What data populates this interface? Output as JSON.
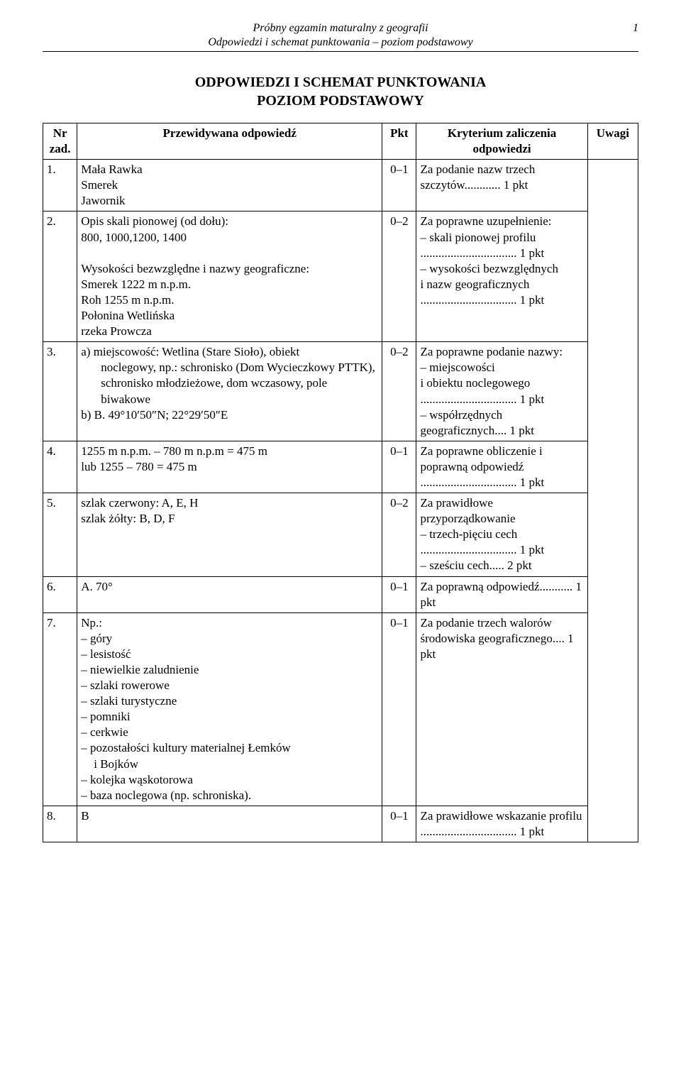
{
  "header": {
    "line1": "Próbny egzamin maturalny z geografii",
    "line2": "Odpowiedzi i schemat punktowania – poziom podstawowy",
    "pagenum": "1"
  },
  "title": {
    "line1": "ODPOWIEDZI I SCHEMAT PUNKTOWANIA",
    "line2": "POZIOM PODSTAWOWY"
  },
  "columns": {
    "nr": "Nr zad.",
    "ans": "Przewidywana odpowiedź",
    "pkt": "Pkt",
    "kryt_l1": "Kryterium zaliczenia",
    "kryt_l2": "odpowiedzi",
    "uwagi": "Uwagi"
  },
  "rows": {
    "r1": {
      "nr": "1.",
      "ans": "Mała Rawka\nSmerek\nJawornik",
      "pkt": "0–1",
      "kryt": "Za podanie nazw trzech szczytów............ 1 pkt"
    },
    "r2": {
      "nr": "2.",
      "ans": "Opis skali pionowej (od dołu):\n800, 1000,1200, 1400\n\nWysokości bezwzględne i nazwy geograficzne:\nSmerek 1222 m n.p.m.\nRoh 1255 m n.p.m.\nPołonina Wetlińska\nrzeka Prowcza",
      "pkt": "0–2",
      "kryt": "Za poprawne uzupełnienie:\n– skali pionowej profilu\n................................ 1 pkt\n– wysokości bezwzględnych\ni nazw geograficznych\n................................ 1 pkt"
    },
    "r3": {
      "nr": "3.",
      "ans_a": "a) miejscowość: Wetlina (Stare Sioło), obiekt",
      "ans_b": "noclegowy, np.: schronisko (Dom Wycieczkowy PTTK), schronisko młodzieżowe, dom wczasowy, pole biwakowe",
      "ans_c": "b) B. 49°10′50″N; 22°29′50″E",
      "pkt": "0–2",
      "kryt": "Za poprawne podanie nazwy:\n– miejscowości\ni obiektu noclegowego\n................................ 1 pkt\n– współrzędnych geograficznych.... 1 pkt"
    },
    "r4": {
      "nr": "4.",
      "ans": "1255 m n.p.m. – 780 m n.p.m = 475 m\nlub 1255 – 780 = 475 m",
      "pkt": "0–1",
      "kryt": "Za poprawne obliczenie i poprawną odpowiedź\n................................ 1 pkt"
    },
    "r5": {
      "nr": "5.",
      "ans": "szlak czerwony: A, E, H\nszlak żółty: B, D, F",
      "pkt": "0–2",
      "kryt": "Za prawidłowe przyporządkowanie\n– trzech-pięciu cech\n................................ 1 pkt\n– sześciu cech..... 2 pkt"
    },
    "r6": {
      "nr": "6.",
      "ans": "A. 70°",
      "pkt": "0–1",
      "kryt": "Za poprawną odpowiedź........... 1 pkt"
    },
    "r7": {
      "nr": "7.",
      "ans": "Np.:\n– góry\n– lesistość\n– niewielkie zaludnienie\n– szlaki rowerowe\n– szlaki turystyczne\n– pomniki\n– cerkwie\n– pozostałości kultury materialnej Łemków",
      "ans_indent": "i Bojków",
      "ans2": "– kolejka wąskotorowa\n– baza noclegowa (np. schroniska).",
      "pkt": "0–1",
      "kryt": "Za podanie trzech walorów środowiska geograficznego.... 1 pkt"
    },
    "r8": {
      "nr": "8.",
      "ans": "B",
      "pkt": "0–1",
      "kryt": "Za prawidłowe wskazanie profilu\n................................ 1 pkt"
    }
  }
}
